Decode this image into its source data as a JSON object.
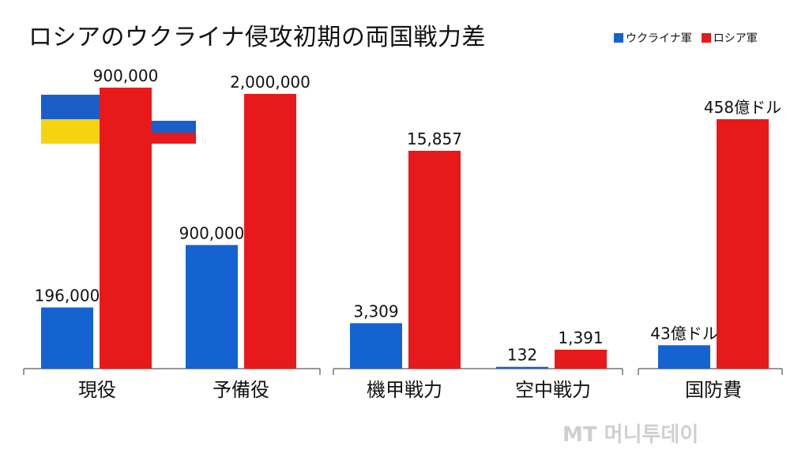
{
  "title": "ロシアのウクライナ侵攻初期の両国戦力差",
  "legend": [
    {
      "label": "ウクライナ軍",
      "color": "#1463d0"
    },
    {
      "label": "ロシア軍",
      "color": "#e8191b"
    }
  ],
  "flags": {
    "ukraine": {
      "top": "#1a5fc8",
      "bottom": "#f5d40f"
    },
    "russia": {
      "top": "#ffffff",
      "middle": "#1a5fc8",
      "bottom": "#e8191b"
    }
  },
  "watermark": "MT 머니투데이",
  "chart_data": {
    "type": "bar",
    "note": "each category uses its own scale; bars are relative within category",
    "series_names": [
      "ウクライナ軍",
      "ロシア軍"
    ],
    "groups": [
      {
        "category": "現役",
        "values": [
          196000,
          900000
        ],
        "labels": [
          "196,000",
          "900,000"
        ]
      },
      {
        "category": "予備役",
        "values": [
          900000,
          2000000
        ],
        "labels": [
          "900,000",
          "2,000,000"
        ]
      },
      {
        "category": "機甲戦力",
        "values": [
          3309,
          15857
        ],
        "labels": [
          "3,309",
          "15,857"
        ]
      },
      {
        "category": "空中戦力",
        "values": [
          132,
          1391
        ],
        "labels": [
          "132",
          "1,391"
        ]
      },
      {
        "category": "国防費",
        "values": [
          43,
          458
        ],
        "labels": [
          "43億ドル",
          "458億ドル"
        ]
      }
    ],
    "legend_position": "top-right",
    "grid": false
  }
}
